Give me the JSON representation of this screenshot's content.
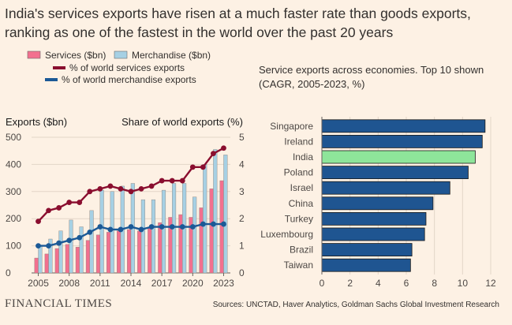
{
  "title_line1": "India's services exports have risen at a much faster rate than goods exports,",
  "title_line2": "ranking as one of the fastest in the world over the past 20 years",
  "colors": {
    "services_bar": "#f2708f",
    "merch_bar": "#a6d0e4",
    "services_share": "#8a0e2f",
    "merch_share": "#1b5996",
    "cagr_bar": "#1f5591",
    "cagr_india": "#8ee59a",
    "background": "#fdf1e4"
  },
  "legend": {
    "services": "Services ($bn)",
    "merchandise": "Merchandise ($bn)",
    "services_share": "% of world services exports",
    "merch_share": "% of world merchandise exports"
  },
  "footer": {
    "brand": "FINANCIAL TIMES",
    "source": "Sources: UNCTAD, Haver Analytics, Goldman Sachs Global Investment Research"
  },
  "chart_data": [
    {
      "type": "bar",
      "title": "",
      "ylabel": "Exports ($bn)",
      "y2label": "Share of world exports (%)",
      "x": [
        2005,
        2006,
        2007,
        2008,
        2009,
        2010,
        2011,
        2012,
        2013,
        2014,
        2015,
        2016,
        2017,
        2018,
        2019,
        2020,
        2021,
        2022,
        2023
      ],
      "xticks": [
        "2005",
        "2008",
        "2011",
        "2014",
        "2017",
        "2020",
        "2023"
      ],
      "yticks": [
        "0",
        "100",
        "200",
        "300",
        "400",
        "500"
      ],
      "y2ticks": [
        "0",
        "1",
        "2",
        "3",
        "4",
        "5"
      ],
      "ylim": [
        0,
        500
      ],
      "y2lim": [
        0,
        5
      ],
      "series": [
        {
          "name": "Services ($bn)",
          "axis": "left",
          "kind": "bar",
          "values": [
            55,
            70,
            90,
            105,
            95,
            120,
            140,
            150,
            155,
            160,
            155,
            165,
            185,
            205,
            215,
            205,
            240,
            310,
            340
          ]
        },
        {
          "name": "Merchandise ($bn)",
          "axis": "left",
          "kind": "bar",
          "values": [
            100,
            125,
            155,
            195,
            170,
            230,
            305,
            300,
            320,
            330,
            270,
            270,
            305,
            330,
            330,
            280,
            400,
            455,
            435
          ]
        },
        {
          "name": "% of world services exports",
          "axis": "right",
          "kind": "line",
          "values": [
            1.9,
            2.3,
            2.4,
            2.6,
            2.6,
            3.0,
            3.1,
            3.2,
            3.1,
            3.0,
            3.1,
            3.2,
            3.4,
            3.4,
            3.4,
            3.9,
            3.9,
            4.4,
            4.6
          ]
        },
        {
          "name": "% of world merchandise exports",
          "axis": "right",
          "kind": "line",
          "values": [
            1.0,
            1.0,
            1.1,
            1.2,
            1.3,
            1.5,
            1.7,
            1.6,
            1.6,
            1.7,
            1.6,
            1.7,
            1.7,
            1.7,
            1.7,
            1.7,
            1.8,
            1.8,
            1.8
          ]
        }
      ]
    },
    {
      "type": "bar",
      "orientation": "horizontal",
      "title": "Service exports across economies. Top 10 shown",
      "subtitle": "(CAGR, 2005-2023, %)",
      "categories": [
        "Singapore",
        "Ireland",
        "India",
        "Poland",
        "Israel",
        "China",
        "Turkey",
        "Luxembourg",
        "Brazil",
        "Taiwan"
      ],
      "values": [
        11.6,
        11.4,
        10.9,
        10.4,
        9.1,
        7.9,
        7.4,
        7.3,
        6.4,
        6.3
      ],
      "highlight": "India",
      "xticks": [
        "0",
        "2",
        "4",
        "6",
        "8",
        "10",
        "12"
      ],
      "xlim": [
        0,
        12
      ]
    }
  ]
}
